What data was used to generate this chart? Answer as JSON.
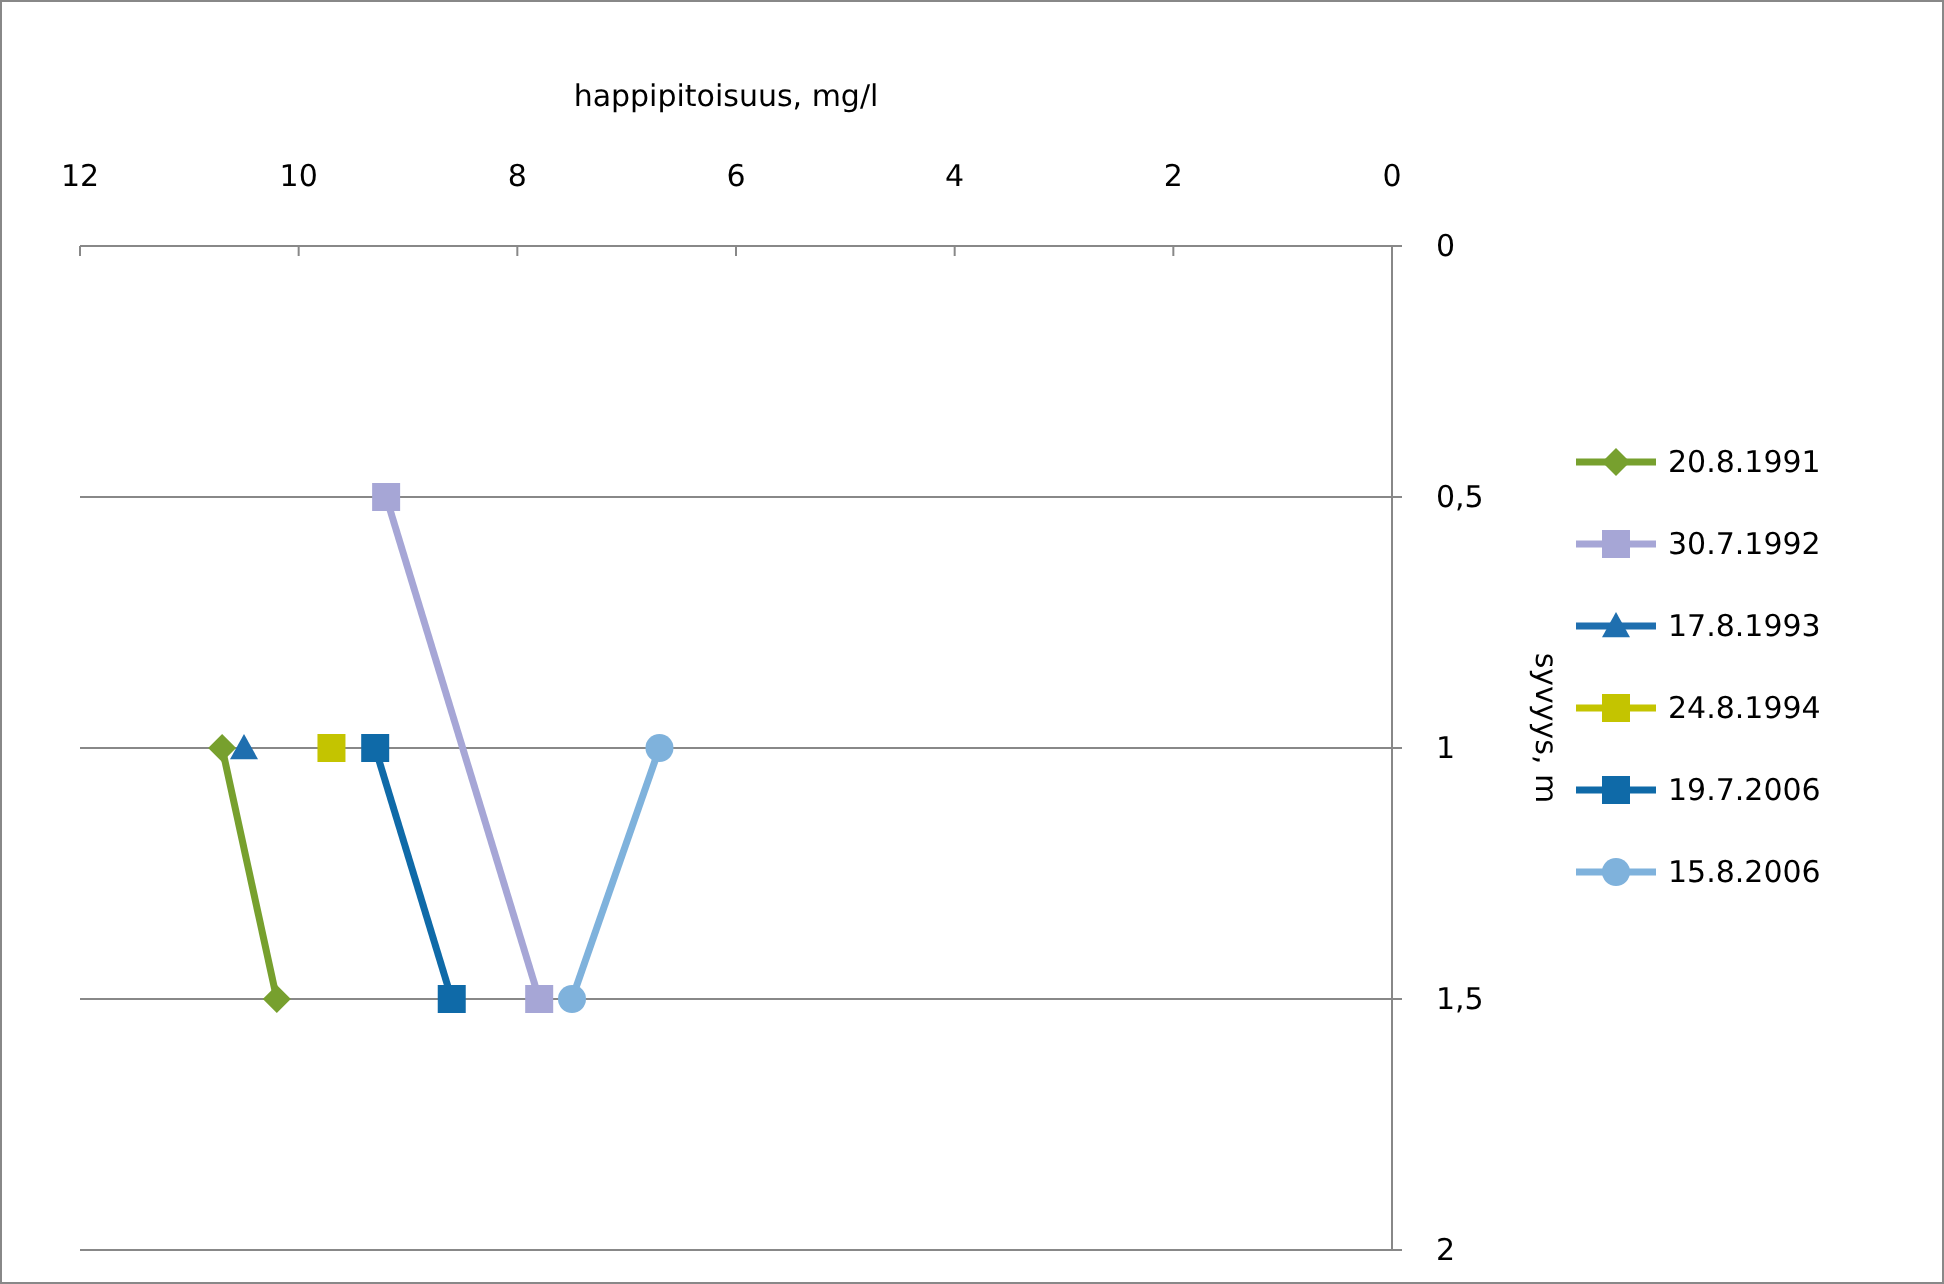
{
  "chart_data": {
    "type": "line",
    "xlabel": "happipitoisuus, mg/l",
    "ylabel": "syvyys, m",
    "xlim": [
      12,
      0
    ],
    "xticks": [
      12,
      10,
      8,
      6,
      4,
      2,
      0
    ],
    "ylim": [
      2,
      0
    ],
    "yticks": [
      0,
      {
        "value": 0.5,
        "label": "0,5"
      },
      1,
      {
        "value": 1.5,
        "label": "1,5"
      },
      2
    ],
    "grid": "y",
    "legend": "right",
    "series": [
      {
        "name": "20.8.1991",
        "color": "#77a02e",
        "marker": "diamond",
        "x": [
          10.7,
          10.2
        ],
        "values": [
          1,
          1.5
        ]
      },
      {
        "name": "30.7.1992",
        "color": "#a6a6d6",
        "marker": "square",
        "x": [
          9.2,
          7.8
        ],
        "values": [
          0.5,
          1.5
        ]
      },
      {
        "name": "17.8.1993",
        "color": "#1f6faf",
        "marker": "triangle",
        "x": [
          10.5
        ],
        "values": [
          1
        ]
      },
      {
        "name": "24.8.1994",
        "color": "#c4c400",
        "marker": "square",
        "x": [
          9.7
        ],
        "values": [
          1
        ]
      },
      {
        "name": "19.7.2006",
        "color": "#0f6aa8",
        "marker": "square",
        "x": [
          9.3,
          8.6
        ],
        "values": [
          1,
          1.5
        ]
      },
      {
        "name": "15.8.2006",
        "color": "#7fb2dc",
        "marker": "circle",
        "x": [
          6.7,
          7.5
        ],
        "values": [
          1,
          1.5
        ]
      }
    ]
  }
}
